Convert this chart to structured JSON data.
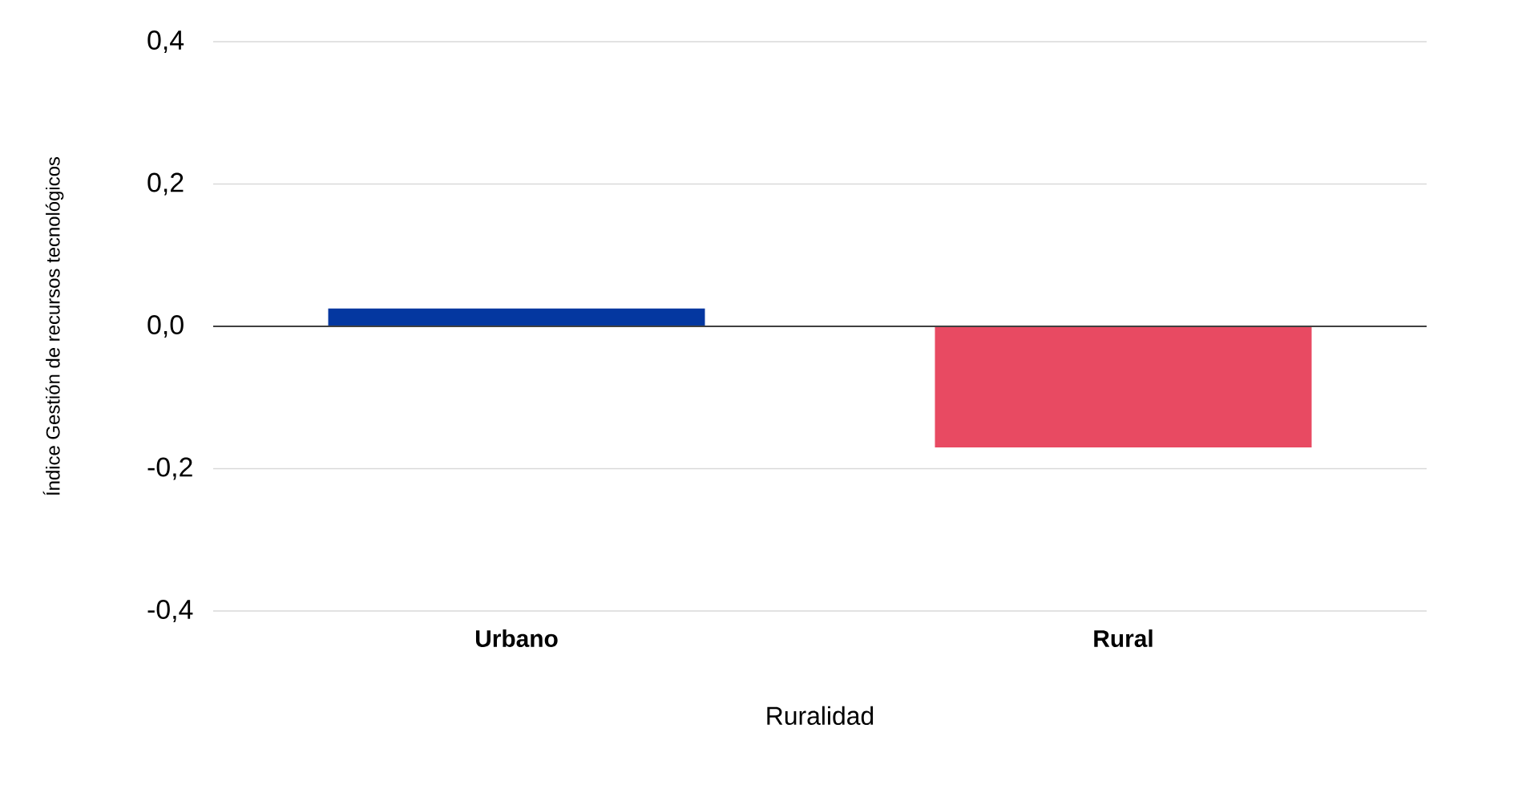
{
  "chart_data": {
    "type": "bar",
    "xlabel": "Ruralidad",
    "ylabel": "Índice Gestión de recursos tecnológicos",
    "categories": [
      "Urbano",
      "Rural"
    ],
    "values": [
      0.025,
      -0.17
    ],
    "colors": [
      "#0437a0",
      "#e84a62"
    ],
    "ylim": [
      -0.4,
      0.4
    ],
    "yticks": [
      {
        "value": -0.4,
        "label": "-0,4"
      },
      {
        "value": -0.2,
        "label": "-0,2"
      },
      {
        "value": 0.0,
        "label": "0,0"
      },
      {
        "value": 0.2,
        "label": "0,2"
      },
      {
        "value": 0.4,
        "label": "0,4"
      }
    ],
    "grid": "y"
  }
}
